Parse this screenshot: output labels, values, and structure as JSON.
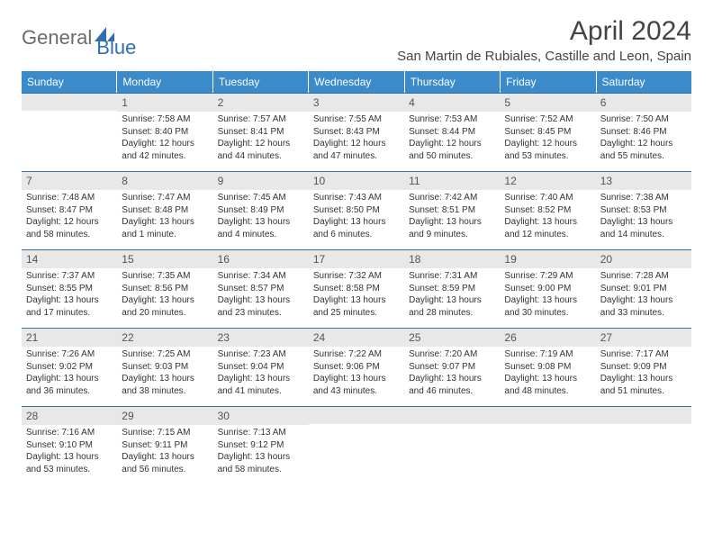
{
  "brand": {
    "part1": "General",
    "part2": "Blue"
  },
  "title": "April 2024",
  "location": "San Martin de Rubiales, Castille and Leon, Spain",
  "colors": {
    "header_bg": "#3b8bca",
    "header_text": "#ffffff",
    "row_border": "#3b6fa0",
    "daynum_bg": "#e8e8e8",
    "body_text": "#333333",
    "logo_gray": "#6b6b6b",
    "logo_blue": "#2f6fb0"
  },
  "day_names": [
    "Sunday",
    "Monday",
    "Tuesday",
    "Wednesday",
    "Thursday",
    "Friday",
    "Saturday"
  ],
  "weeks": [
    [
      {
        "blank": true
      },
      {
        "num": "1",
        "sunrise": "Sunrise: 7:58 AM",
        "sunset": "Sunset: 8:40 PM",
        "day1": "Daylight: 12 hours",
        "day2": "and 42 minutes."
      },
      {
        "num": "2",
        "sunrise": "Sunrise: 7:57 AM",
        "sunset": "Sunset: 8:41 PM",
        "day1": "Daylight: 12 hours",
        "day2": "and 44 minutes."
      },
      {
        "num": "3",
        "sunrise": "Sunrise: 7:55 AM",
        "sunset": "Sunset: 8:43 PM",
        "day1": "Daylight: 12 hours",
        "day2": "and 47 minutes."
      },
      {
        "num": "4",
        "sunrise": "Sunrise: 7:53 AM",
        "sunset": "Sunset: 8:44 PM",
        "day1": "Daylight: 12 hours",
        "day2": "and 50 minutes."
      },
      {
        "num": "5",
        "sunrise": "Sunrise: 7:52 AM",
        "sunset": "Sunset: 8:45 PM",
        "day1": "Daylight: 12 hours",
        "day2": "and 53 minutes."
      },
      {
        "num": "6",
        "sunrise": "Sunrise: 7:50 AM",
        "sunset": "Sunset: 8:46 PM",
        "day1": "Daylight: 12 hours",
        "day2": "and 55 minutes."
      }
    ],
    [
      {
        "num": "7",
        "sunrise": "Sunrise: 7:48 AM",
        "sunset": "Sunset: 8:47 PM",
        "day1": "Daylight: 12 hours",
        "day2": "and 58 minutes."
      },
      {
        "num": "8",
        "sunrise": "Sunrise: 7:47 AM",
        "sunset": "Sunset: 8:48 PM",
        "day1": "Daylight: 13 hours",
        "day2": "and 1 minute."
      },
      {
        "num": "9",
        "sunrise": "Sunrise: 7:45 AM",
        "sunset": "Sunset: 8:49 PM",
        "day1": "Daylight: 13 hours",
        "day2": "and 4 minutes."
      },
      {
        "num": "10",
        "sunrise": "Sunrise: 7:43 AM",
        "sunset": "Sunset: 8:50 PM",
        "day1": "Daylight: 13 hours",
        "day2": "and 6 minutes."
      },
      {
        "num": "11",
        "sunrise": "Sunrise: 7:42 AM",
        "sunset": "Sunset: 8:51 PM",
        "day1": "Daylight: 13 hours",
        "day2": "and 9 minutes."
      },
      {
        "num": "12",
        "sunrise": "Sunrise: 7:40 AM",
        "sunset": "Sunset: 8:52 PM",
        "day1": "Daylight: 13 hours",
        "day2": "and 12 minutes."
      },
      {
        "num": "13",
        "sunrise": "Sunrise: 7:38 AM",
        "sunset": "Sunset: 8:53 PM",
        "day1": "Daylight: 13 hours",
        "day2": "and 14 minutes."
      }
    ],
    [
      {
        "num": "14",
        "sunrise": "Sunrise: 7:37 AM",
        "sunset": "Sunset: 8:55 PM",
        "day1": "Daylight: 13 hours",
        "day2": "and 17 minutes."
      },
      {
        "num": "15",
        "sunrise": "Sunrise: 7:35 AM",
        "sunset": "Sunset: 8:56 PM",
        "day1": "Daylight: 13 hours",
        "day2": "and 20 minutes."
      },
      {
        "num": "16",
        "sunrise": "Sunrise: 7:34 AM",
        "sunset": "Sunset: 8:57 PM",
        "day1": "Daylight: 13 hours",
        "day2": "and 23 minutes."
      },
      {
        "num": "17",
        "sunrise": "Sunrise: 7:32 AM",
        "sunset": "Sunset: 8:58 PM",
        "day1": "Daylight: 13 hours",
        "day2": "and 25 minutes."
      },
      {
        "num": "18",
        "sunrise": "Sunrise: 7:31 AM",
        "sunset": "Sunset: 8:59 PM",
        "day1": "Daylight: 13 hours",
        "day2": "and 28 minutes."
      },
      {
        "num": "19",
        "sunrise": "Sunrise: 7:29 AM",
        "sunset": "Sunset: 9:00 PM",
        "day1": "Daylight: 13 hours",
        "day2": "and 30 minutes."
      },
      {
        "num": "20",
        "sunrise": "Sunrise: 7:28 AM",
        "sunset": "Sunset: 9:01 PM",
        "day1": "Daylight: 13 hours",
        "day2": "and 33 minutes."
      }
    ],
    [
      {
        "num": "21",
        "sunrise": "Sunrise: 7:26 AM",
        "sunset": "Sunset: 9:02 PM",
        "day1": "Daylight: 13 hours",
        "day2": "and 36 minutes."
      },
      {
        "num": "22",
        "sunrise": "Sunrise: 7:25 AM",
        "sunset": "Sunset: 9:03 PM",
        "day1": "Daylight: 13 hours",
        "day2": "and 38 minutes."
      },
      {
        "num": "23",
        "sunrise": "Sunrise: 7:23 AM",
        "sunset": "Sunset: 9:04 PM",
        "day1": "Daylight: 13 hours",
        "day2": "and 41 minutes."
      },
      {
        "num": "24",
        "sunrise": "Sunrise: 7:22 AM",
        "sunset": "Sunset: 9:06 PM",
        "day1": "Daylight: 13 hours",
        "day2": "and 43 minutes."
      },
      {
        "num": "25",
        "sunrise": "Sunrise: 7:20 AM",
        "sunset": "Sunset: 9:07 PM",
        "day1": "Daylight: 13 hours",
        "day2": "and 46 minutes."
      },
      {
        "num": "26",
        "sunrise": "Sunrise: 7:19 AM",
        "sunset": "Sunset: 9:08 PM",
        "day1": "Daylight: 13 hours",
        "day2": "and 48 minutes."
      },
      {
        "num": "27",
        "sunrise": "Sunrise: 7:17 AM",
        "sunset": "Sunset: 9:09 PM",
        "day1": "Daylight: 13 hours",
        "day2": "and 51 minutes."
      }
    ],
    [
      {
        "num": "28",
        "sunrise": "Sunrise: 7:16 AM",
        "sunset": "Sunset: 9:10 PM",
        "day1": "Daylight: 13 hours",
        "day2": "and 53 minutes."
      },
      {
        "num": "29",
        "sunrise": "Sunrise: 7:15 AM",
        "sunset": "Sunset: 9:11 PM",
        "day1": "Daylight: 13 hours",
        "day2": "and 56 minutes."
      },
      {
        "num": "30",
        "sunrise": "Sunrise: 7:13 AM",
        "sunset": "Sunset: 9:12 PM",
        "day1": "Daylight: 13 hours",
        "day2": "and 58 minutes."
      },
      {
        "blank": true
      },
      {
        "blank": true
      },
      {
        "blank": true
      },
      {
        "blank": true
      }
    ]
  ]
}
